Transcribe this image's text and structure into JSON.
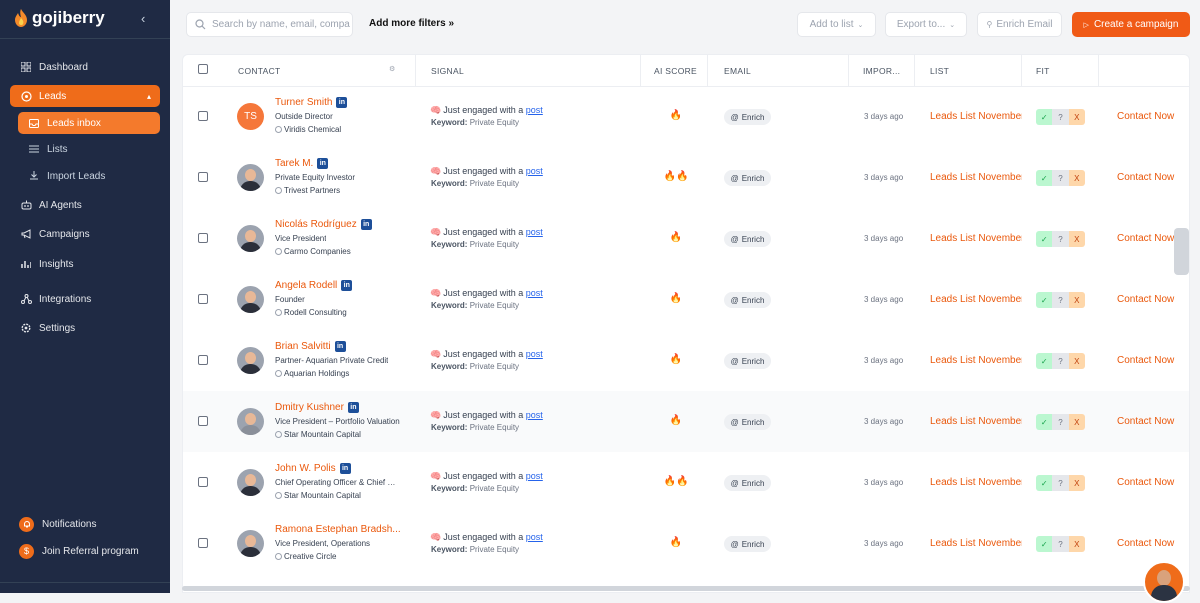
{
  "app": {
    "name": "gojiberry",
    "brand_color": "#ef6c1a",
    "sidebar_color": "#1f2a44"
  },
  "sidebar": {
    "collapse_icon": "chevron-left-icon",
    "items": [
      {
        "label": "Dashboard",
        "icon": "grid-icon"
      },
      {
        "label": "Leads",
        "icon": "target-icon"
      },
      {
        "label": "Leads inbox",
        "icon": "inbox-icon"
      },
      {
        "label": "Lists",
        "icon": "list-icon"
      },
      {
        "label": "Import Leads",
        "icon": "import-icon"
      },
      {
        "label": "AI Agents",
        "icon": "robot-icon"
      },
      {
        "label": "Campaigns",
        "icon": "megaphone-icon"
      },
      {
        "label": "Insights",
        "icon": "chart-icon"
      },
      {
        "label": "Integrations",
        "icon": "plug-icon"
      },
      {
        "label": "Settings",
        "icon": "gear-icon"
      }
    ],
    "bottom": [
      {
        "label": "Notifications",
        "icon": "bell-icon"
      },
      {
        "label": "Join Referral program",
        "icon": "dollar-icon"
      }
    ]
  },
  "toolbar": {
    "search_placeholder": "Search by name, email, company...",
    "more_filters": "Add more filters »",
    "add_to_list": "Add to list",
    "export": "Export to...",
    "enrich_email": "Enrich Email",
    "create_campaign": "Create a campaign"
  },
  "table": {
    "columns": {
      "contact": "CONTACT",
      "signal": "SIGNAL",
      "ai_score": "AI SCORE",
      "email": "EMAIL",
      "imported": "IMPOR...",
      "list": "LIST",
      "fit": "FIT"
    },
    "rows": [
      {
        "name": "Turner Smith",
        "initials": "TS",
        "title": "Outside Director",
        "company": "Viridis Chemical",
        "signal_prefix": "Just engaged with a",
        "signal_link": "post",
        "keyword_label": "Keyword:",
        "keyword": "Private Equity",
        "score": "🔥",
        "email": "Enrich",
        "imported": "3 days ago",
        "list": "Leads List November",
        "fit": [
          "✓",
          "?",
          "X"
        ],
        "action": "Contact Now"
      },
      {
        "name": "Tarek M.",
        "title": "Private Equity Investor",
        "company": "Trivest Partners",
        "signal_prefix": "Just engaged with a",
        "signal_link": "post",
        "keyword_label": "Keyword:",
        "keyword": "Private Equity",
        "score": "🔥🔥",
        "email": "Enrich",
        "imported": "3 days ago",
        "list": "Leads List November",
        "fit": [
          "✓",
          "?",
          "X"
        ],
        "action": "Contact Now"
      },
      {
        "name": "Nicolás Rodríguez",
        "title": "Vice President",
        "company": "Carmo Companies",
        "signal_prefix": "Just engaged with a",
        "signal_link": "post",
        "keyword_label": "Keyword:",
        "keyword": "Private Equity",
        "score": "🔥",
        "email": "Enrich",
        "imported": "3 days ago",
        "list": "Leads List November",
        "fit": [
          "✓",
          "?",
          "X"
        ],
        "action": "Contact Now"
      },
      {
        "name": "Angela Rodell",
        "title": "Founder",
        "company": "Rodell Consulting",
        "signal_prefix": "Just engaged with a",
        "signal_link": "post",
        "keyword_label": "Keyword:",
        "keyword": "Private Equity",
        "score": "🔥",
        "email": "Enrich",
        "imported": "3 days ago",
        "list": "Leads List November",
        "fit": [
          "✓",
          "?",
          "X"
        ],
        "action": "Contact Now"
      },
      {
        "name": "Brian Salvitti",
        "title": "Partner- Aquarian Private Credit",
        "company": "Aquarian Holdings",
        "signal_prefix": "Just engaged with a",
        "signal_link": "post",
        "keyword_label": "Keyword:",
        "keyword": "Private Equity",
        "score": "🔥",
        "email": "Enrich",
        "imported": "3 days ago",
        "list": "Leads List November",
        "fit": [
          "✓",
          "?",
          "X"
        ],
        "action": "Contact Now"
      },
      {
        "name": "Dmitry Kushner",
        "title": "Vice President – Portfolio Valuation",
        "company": "Star Mountain Capital",
        "signal_prefix": "Just engaged with a",
        "signal_link": "post",
        "keyword_label": "Keyword:",
        "keyword": "Private Equity",
        "score": "🔥",
        "email": "Enrich",
        "imported": "3 days ago",
        "list": "Leads List November",
        "fit": [
          "✓",
          "?",
          "X"
        ],
        "action": "Contact Now"
      },
      {
        "name": "John W. Polis",
        "title": "Chief Operating Officer & Chief Compliance Officer",
        "company": "Star Mountain Capital",
        "signal_prefix": "Just engaged with a",
        "signal_link": "post",
        "keyword_label": "Keyword:",
        "keyword": "Private Equity",
        "score": "🔥🔥",
        "email": "Enrich",
        "imported": "3 days ago",
        "list": "Leads List November",
        "fit": [
          "✓",
          "?",
          "X"
        ],
        "action": "Contact Now"
      },
      {
        "name": "Ramona Estephan Bradsh...",
        "title": "Vice President, Operations",
        "company": "Creative Circle",
        "signal_prefix": "Just engaged with a",
        "signal_link": "post",
        "keyword_label": "Keyword:",
        "keyword": "Private Equity",
        "score": "🔥",
        "email": "Enrich",
        "imported": "3 days ago",
        "list": "Leads List November",
        "fit": [
          "✓",
          "?",
          "X"
        ],
        "action": "Contact Now"
      }
    ]
  }
}
